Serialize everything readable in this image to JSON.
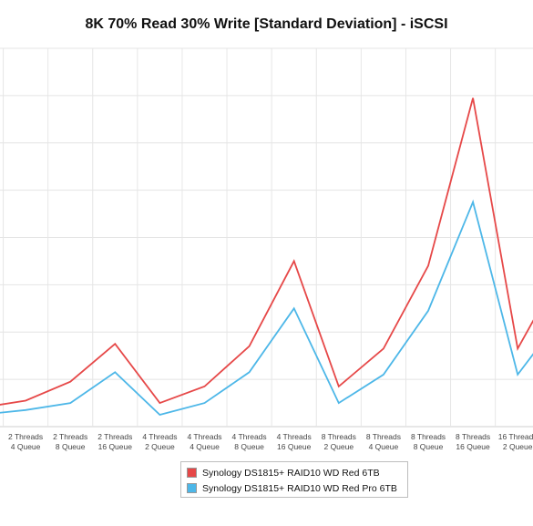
{
  "chart_data": {
    "type": "line",
    "title": "8K 70% Read 30% Write [Standard Deviation] - iSCSI",
    "xlabel": "",
    "ylabel": "",
    "categories": [
      [
        "2 Threads",
        "2 Queue"
      ],
      [
        "2 Threads",
        "4 Queue"
      ],
      [
        "2 Threads",
        "8 Queue"
      ],
      [
        "2 Threads",
        "16 Queue"
      ],
      [
        "4 Threads",
        "2 Queue"
      ],
      [
        "4 Threads",
        "4 Queue"
      ],
      [
        "4 Threads",
        "8 Queue"
      ],
      [
        "4 Threads",
        "16 Queue"
      ],
      [
        "8 Threads",
        "2 Queue"
      ],
      [
        "8 Threads",
        "4 Queue"
      ],
      [
        "8 Threads",
        "8 Queue"
      ],
      [
        "8 Threads",
        "16 Queue"
      ],
      [
        "16 Threads",
        "2 Queue"
      ],
      [
        "16 Threads",
        "4 Queue"
      ]
    ],
    "series": [
      {
        "name": "Synology DS1815+ RAID10 WD Red 6TB",
        "color": "#e64848",
        "values": [
          0.4,
          0.55,
          0.95,
          1.75,
          0.5,
          0.85,
          1.7,
          3.5,
          0.85,
          1.65,
          3.4,
          6.95,
          1.65,
          3.35
        ]
      },
      {
        "name": "Synology DS1815+ RAID10 WD Red Pro 6TB",
        "color": "#4db7e8",
        "values": [
          0.25,
          0.35,
          0.5,
          1.15,
          0.25,
          0.5,
          1.15,
          2.5,
          0.5,
          1.1,
          2.45,
          4.75,
          1.1,
          2.35
        ]
      }
    ],
    "ylim": [
      0,
      8
    ],
    "grid": true,
    "legend_position": "bottom-center"
  }
}
